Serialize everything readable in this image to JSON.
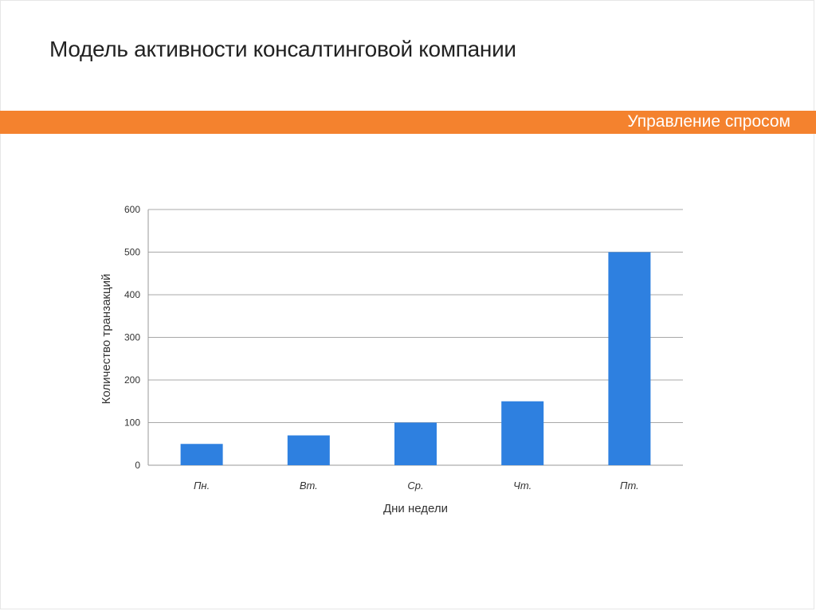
{
  "slide": {
    "title": "Модель активности консалтинговой компании",
    "section_label": "Управление спросом",
    "accent_color": "#f4822e"
  },
  "chart_data": {
    "type": "bar",
    "categories": [
      "Пн.",
      "Вт.",
      "Ср.",
      "Чт.",
      "Пт."
    ],
    "values": [
      50,
      70,
      100,
      150,
      500
    ],
    "xlabel": "Дни недели",
    "ylabel": "Количество транзакций",
    "ylim": [
      0,
      600
    ],
    "yticks": [
      0,
      100,
      200,
      300,
      400,
      500,
      600
    ],
    "grid": true,
    "legend": "none",
    "bar_color": "#2e80e0"
  }
}
